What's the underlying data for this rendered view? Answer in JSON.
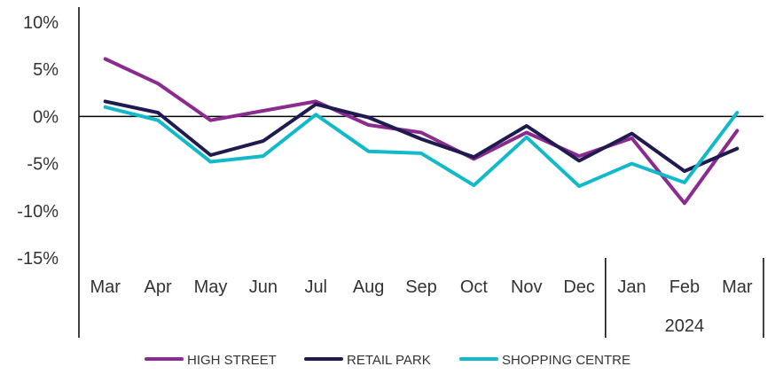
{
  "chart_data": {
    "type": "line",
    "categories": [
      "Mar",
      "Apr",
      "May",
      "Jun",
      "Jul",
      "Aug",
      "Sep",
      "Oct",
      "Nov",
      "Dec",
      "Jan",
      "Feb",
      "Mar"
    ],
    "year_label": "2024",
    "y_tick_labels": [
      "10%",
      "5%",
      "0%",
      "-5%",
      "-10%",
      "-15%"
    ],
    "ylim": [
      -15,
      10
    ],
    "grid": false,
    "legend_position": "bottom",
    "series": [
      {
        "name": "HIGH STREET",
        "color": "#8B2A8F",
        "values": [
          6.1,
          3.5,
          -0.4,
          0.6,
          1.6,
          -0.9,
          -1.7,
          -4.5,
          -1.7,
          -4.2,
          -2.3,
          -9.2,
          -1.5
        ]
      },
      {
        "name": "RETAIL PARK",
        "color": "#1F1A4F",
        "values": [
          1.6,
          0.4,
          -4.1,
          -2.6,
          1.3,
          -0.1,
          -2.4,
          -4.3,
          -1.0,
          -4.7,
          -1.8,
          -5.8,
          -3.4
        ]
      },
      {
        "name": "SHOPPING CENTRE",
        "color": "#12B9C9",
        "values": [
          1.0,
          -0.4,
          -4.8,
          -4.2,
          0.2,
          -3.7,
          -3.9,
          -7.3,
          -2.2,
          -7.4,
          -5.0,
          -7.0,
          0.4
        ]
      }
    ]
  }
}
